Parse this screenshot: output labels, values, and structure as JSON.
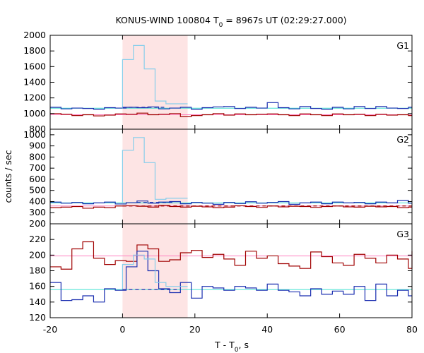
{
  "chart_data": {
    "type": "line",
    "title": {
      "main": "KONUS-WIND 100804 T",
      "sub": "0",
      "rest": " = 8967s UT (02:29:27.000)"
    },
    "xlabel": {
      "main": "T - T",
      "sub": "0",
      "rest": ", s"
    },
    "ylabel": "counts / sec",
    "xlim": [
      -20,
      80
    ],
    "xticks": [
      -20,
      0,
      20,
      40,
      60,
      80
    ],
    "xtick_labels": [
      "-20",
      "0",
      "20",
      "40",
      "60",
      "80"
    ],
    "shaded_interval": {
      "x": [
        0,
        18
      ],
      "color": "#fde4e4"
    },
    "colors": {
      "bins_256ms": "#87ceeb",
      "bins_2_944s": "#1a2eb0",
      "background_blue": "#40e0d0",
      "red_series": "#a00000",
      "red_background": "#ff80c0"
    },
    "panels": [
      {
        "name": "G1",
        "ylim": [
          800,
          2000
        ],
        "yticks": [
          800,
          1000,
          1200,
          1400,
          1600,
          1800,
          2000
        ],
        "ytick_labels": [
          "800",
          "1000",
          "1200",
          "1400",
          "1600",
          "1800",
          "2000"
        ],
        "blue_bg": 1068,
        "red_bg": 985,
        "blue_dash": {
          "x": [
            0,
            12
          ],
          "y": 1080
        },
        "red_dash": null,
        "light_x": [
          0,
          3,
          6,
          9,
          12,
          15,
          18
        ],
        "light_y": [
          1690,
          1870,
          1570,
          1160,
          1125,
          1125
        ],
        "blue_x": [
          -20,
          -17,
          -14,
          -11,
          -8,
          -5,
          -2,
          1,
          4,
          7,
          10,
          13,
          16,
          19,
          22,
          25,
          28,
          31,
          34,
          37,
          40,
          43,
          46,
          49,
          52,
          55,
          58,
          61,
          64,
          67,
          70,
          73,
          76,
          79,
          80
        ],
        "blue_y": [
          1080,
          1060,
          1070,
          1065,
          1055,
          1075,
          1070,
          1080,
          1075,
          1085,
          1060,
          1070,
          1080,
          1055,
          1075,
          1085,
          1090,
          1065,
          1080,
          1070,
          1140,
          1075,
          1060,
          1090,
          1065,
          1055,
          1080,
          1060,
          1090,
          1065,
          1090,
          1070,
          1065,
          1080
        ],
        "red_x": [
          -20,
          -17,
          -14,
          -11,
          -8,
          -5,
          -2,
          1,
          4,
          7,
          10,
          13,
          16,
          19,
          22,
          25,
          28,
          31,
          34,
          37,
          40,
          43,
          46,
          49,
          52,
          55,
          58,
          61,
          64,
          67,
          70,
          73,
          76,
          79,
          80
        ],
        "red_y": [
          1000,
          990,
          975,
          985,
          970,
          980,
          995,
          990,
          1005,
          985,
          990,
          1000,
          960,
          975,
          985,
          1000,
          980,
          995,
          985,
          990,
          995,
          985,
          975,
          995,
          985,
          975,
          995,
          985,
          990,
          975,
          990,
          980,
          985,
          975
        ]
      },
      {
        "name": "G2",
        "ylim": [
          200,
          1050
        ],
        "yticks": [
          200,
          300,
          400,
          500,
          600,
          700,
          800,
          900,
          1000
        ],
        "ytick_labels": [
          "200",
          "300",
          "400",
          "500",
          "600",
          "700",
          "800",
          "900",
          "1000"
        ],
        "blue_bg": 388,
        "red_bg": 360,
        "blue_dash": {
          "x": [
            4,
            14
          ],
          "y": 392
        },
        "red_dash": {
          "x": [
            0,
            80
          ],
          "y": 360
        },
        "light_x": [
          0,
          3,
          6,
          9,
          12,
          15,
          18
        ],
        "light_y": [
          860,
          975,
          750,
          420,
          430,
          430
        ],
        "blue_x": [
          -20,
          -17,
          -14,
          -11,
          -8,
          -5,
          -2,
          1,
          4,
          7,
          10,
          13,
          16,
          19,
          22,
          25,
          28,
          31,
          34,
          37,
          40,
          43,
          46,
          49,
          52,
          55,
          58,
          61,
          64,
          67,
          70,
          73,
          76,
          79,
          80
        ],
        "blue_y": [
          395,
          385,
          392,
          380,
          388,
          395,
          378,
          390,
          405,
          385,
          395,
          400,
          380,
          392,
          385,
          375,
          392,
          382,
          398,
          385,
          392,
          400,
          375,
          388,
          395,
          380,
          395,
          388,
          392,
          380,
          395,
          388,
          410,
          385
        ],
        "red_x": [
          -20,
          -17,
          -14,
          -11,
          -8,
          -5,
          -2,
          1,
          4,
          7,
          10,
          13,
          16,
          19,
          22,
          25,
          28,
          31,
          34,
          37,
          40,
          43,
          46,
          49,
          52,
          55,
          58,
          61,
          64,
          67,
          70,
          73,
          76,
          79,
          80
        ],
        "red_y": [
          345,
          350,
          355,
          340,
          350,
          345,
          360,
          362,
          358,
          350,
          365,
          355,
          350,
          358,
          352,
          345,
          350,
          362,
          355,
          348,
          360,
          352,
          358,
          355,
          348,
          355,
          360,
          352,
          350,
          358,
          352,
          355,
          345,
          350
        ]
      },
      {
        "name": "G3",
        "ylim": [
          120,
          240
        ],
        "yticks": [
          120,
          140,
          160,
          180,
          200,
          220
        ],
        "ytick_labels": [
          "120",
          "140",
          "160",
          "180",
          "200",
          "220"
        ],
        "blue_bg": 156,
        "red_bg": 199,
        "blue_dash": {
          "x": [
            0,
            15
          ],
          "y": 156
        },
        "red_dash": null,
        "light_x": [
          0,
          3,
          6,
          9,
          12,
          15,
          18
        ],
        "light_y": [
          188,
          200,
          195,
          165,
          160,
          160
        ],
        "blue_x": [
          -20,
          -17,
          -14,
          -11,
          -8,
          -5,
          -2,
          1,
          4,
          7,
          10,
          13,
          16,
          19,
          22,
          25,
          28,
          31,
          34,
          37,
          40,
          43,
          46,
          49,
          52,
          55,
          58,
          61,
          64,
          67,
          70,
          73,
          76,
          79,
          80
        ],
        "blue_y": [
          165,
          142,
          143,
          148,
          140,
          157,
          155,
          185,
          205,
          180,
          157,
          152,
          165,
          145,
          160,
          158,
          155,
          160,
          158,
          155,
          163,
          155,
          153,
          148,
          157,
          150,
          154,
          150,
          160,
          142,
          163,
          148,
          155,
          148
        ],
        "red_x": [
          -20,
          -17,
          -14,
          -11,
          -8,
          -5,
          -2,
          1,
          4,
          7,
          10,
          13,
          16,
          19,
          22,
          25,
          28,
          31,
          34,
          37,
          40,
          43,
          46,
          49,
          52,
          55,
          58,
          61,
          64,
          67,
          70,
          73,
          76,
          79,
          80
        ],
        "red_y": [
          185,
          182,
          208,
          217,
          196,
          188,
          193,
          192,
          213,
          208,
          192,
          194,
          203,
          206,
          197,
          201,
          195,
          187,
          205,
          196,
          199,
          189,
          186,
          183,
          204,
          198,
          190,
          187,
          201,
          196,
          190,
          200,
          195,
          183,
          205
        ]
      }
    ]
  }
}
